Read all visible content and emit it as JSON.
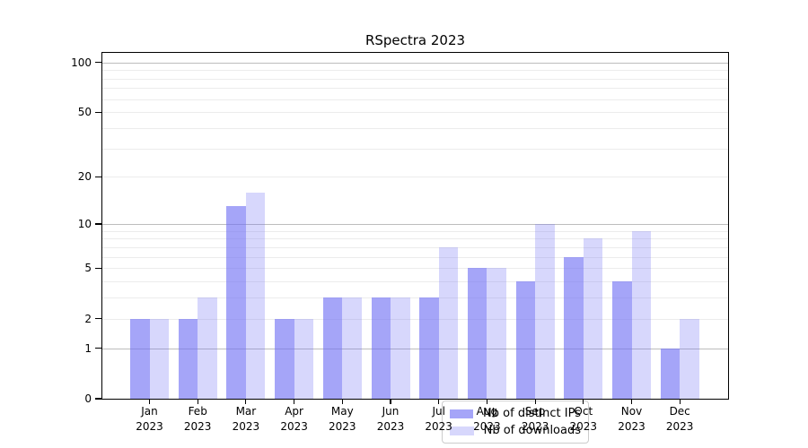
{
  "chart_data": {
    "type": "bar",
    "title": "RSpectra 2023",
    "categories": [
      "Jan 2023",
      "Feb 2023",
      "Mar 2023",
      "Apr 2023",
      "May 2023",
      "Jun 2023",
      "Jul 2023",
      "Aug 2023",
      "Sep 2023",
      "Oct 2023",
      "Nov 2023",
      "Dec 2023"
    ],
    "months": [
      "Jan",
      "Feb",
      "Mar",
      "Apr",
      "May",
      "Jun",
      "Jul",
      "Aug",
      "Sep",
      "Oct",
      "Nov",
      "Dec"
    ],
    "year": "2023",
    "series": [
      {
        "name": "Nb of distinct IPs",
        "color": "rgba(110,110,243,0.62)",
        "values": [
          2,
          2,
          13,
          2,
          3,
          3,
          3,
          5,
          4,
          6,
          4,
          1
        ]
      },
      {
        "name": "Nb of downloads",
        "color": "rgba(110,110,243,0.28)",
        "values": [
          2,
          3,
          16,
          2,
          3,
          3,
          7,
          5,
          10,
          8,
          9,
          2
        ]
      }
    ],
    "y_axis": {
      "scale": "log1p",
      "tick_values": [
        0,
        1,
        2,
        5,
        10,
        20,
        50,
        100
      ],
      "grid_major_values": [
        1,
        10,
        100
      ],
      "grid_minor_values": [
        2,
        3,
        4,
        5,
        6,
        7,
        8,
        9,
        20,
        30,
        40,
        50,
        60,
        70,
        80,
        90
      ]
    },
    "xlabel": "",
    "ylabel": "",
    "grid": "on",
    "legend_position": "inside-lower-center"
  },
  "colors": {
    "grid_major": "#bdbdbd",
    "grid_minor": "#ececec",
    "axis": "#000000",
    "legend_border": "#cccccc"
  }
}
